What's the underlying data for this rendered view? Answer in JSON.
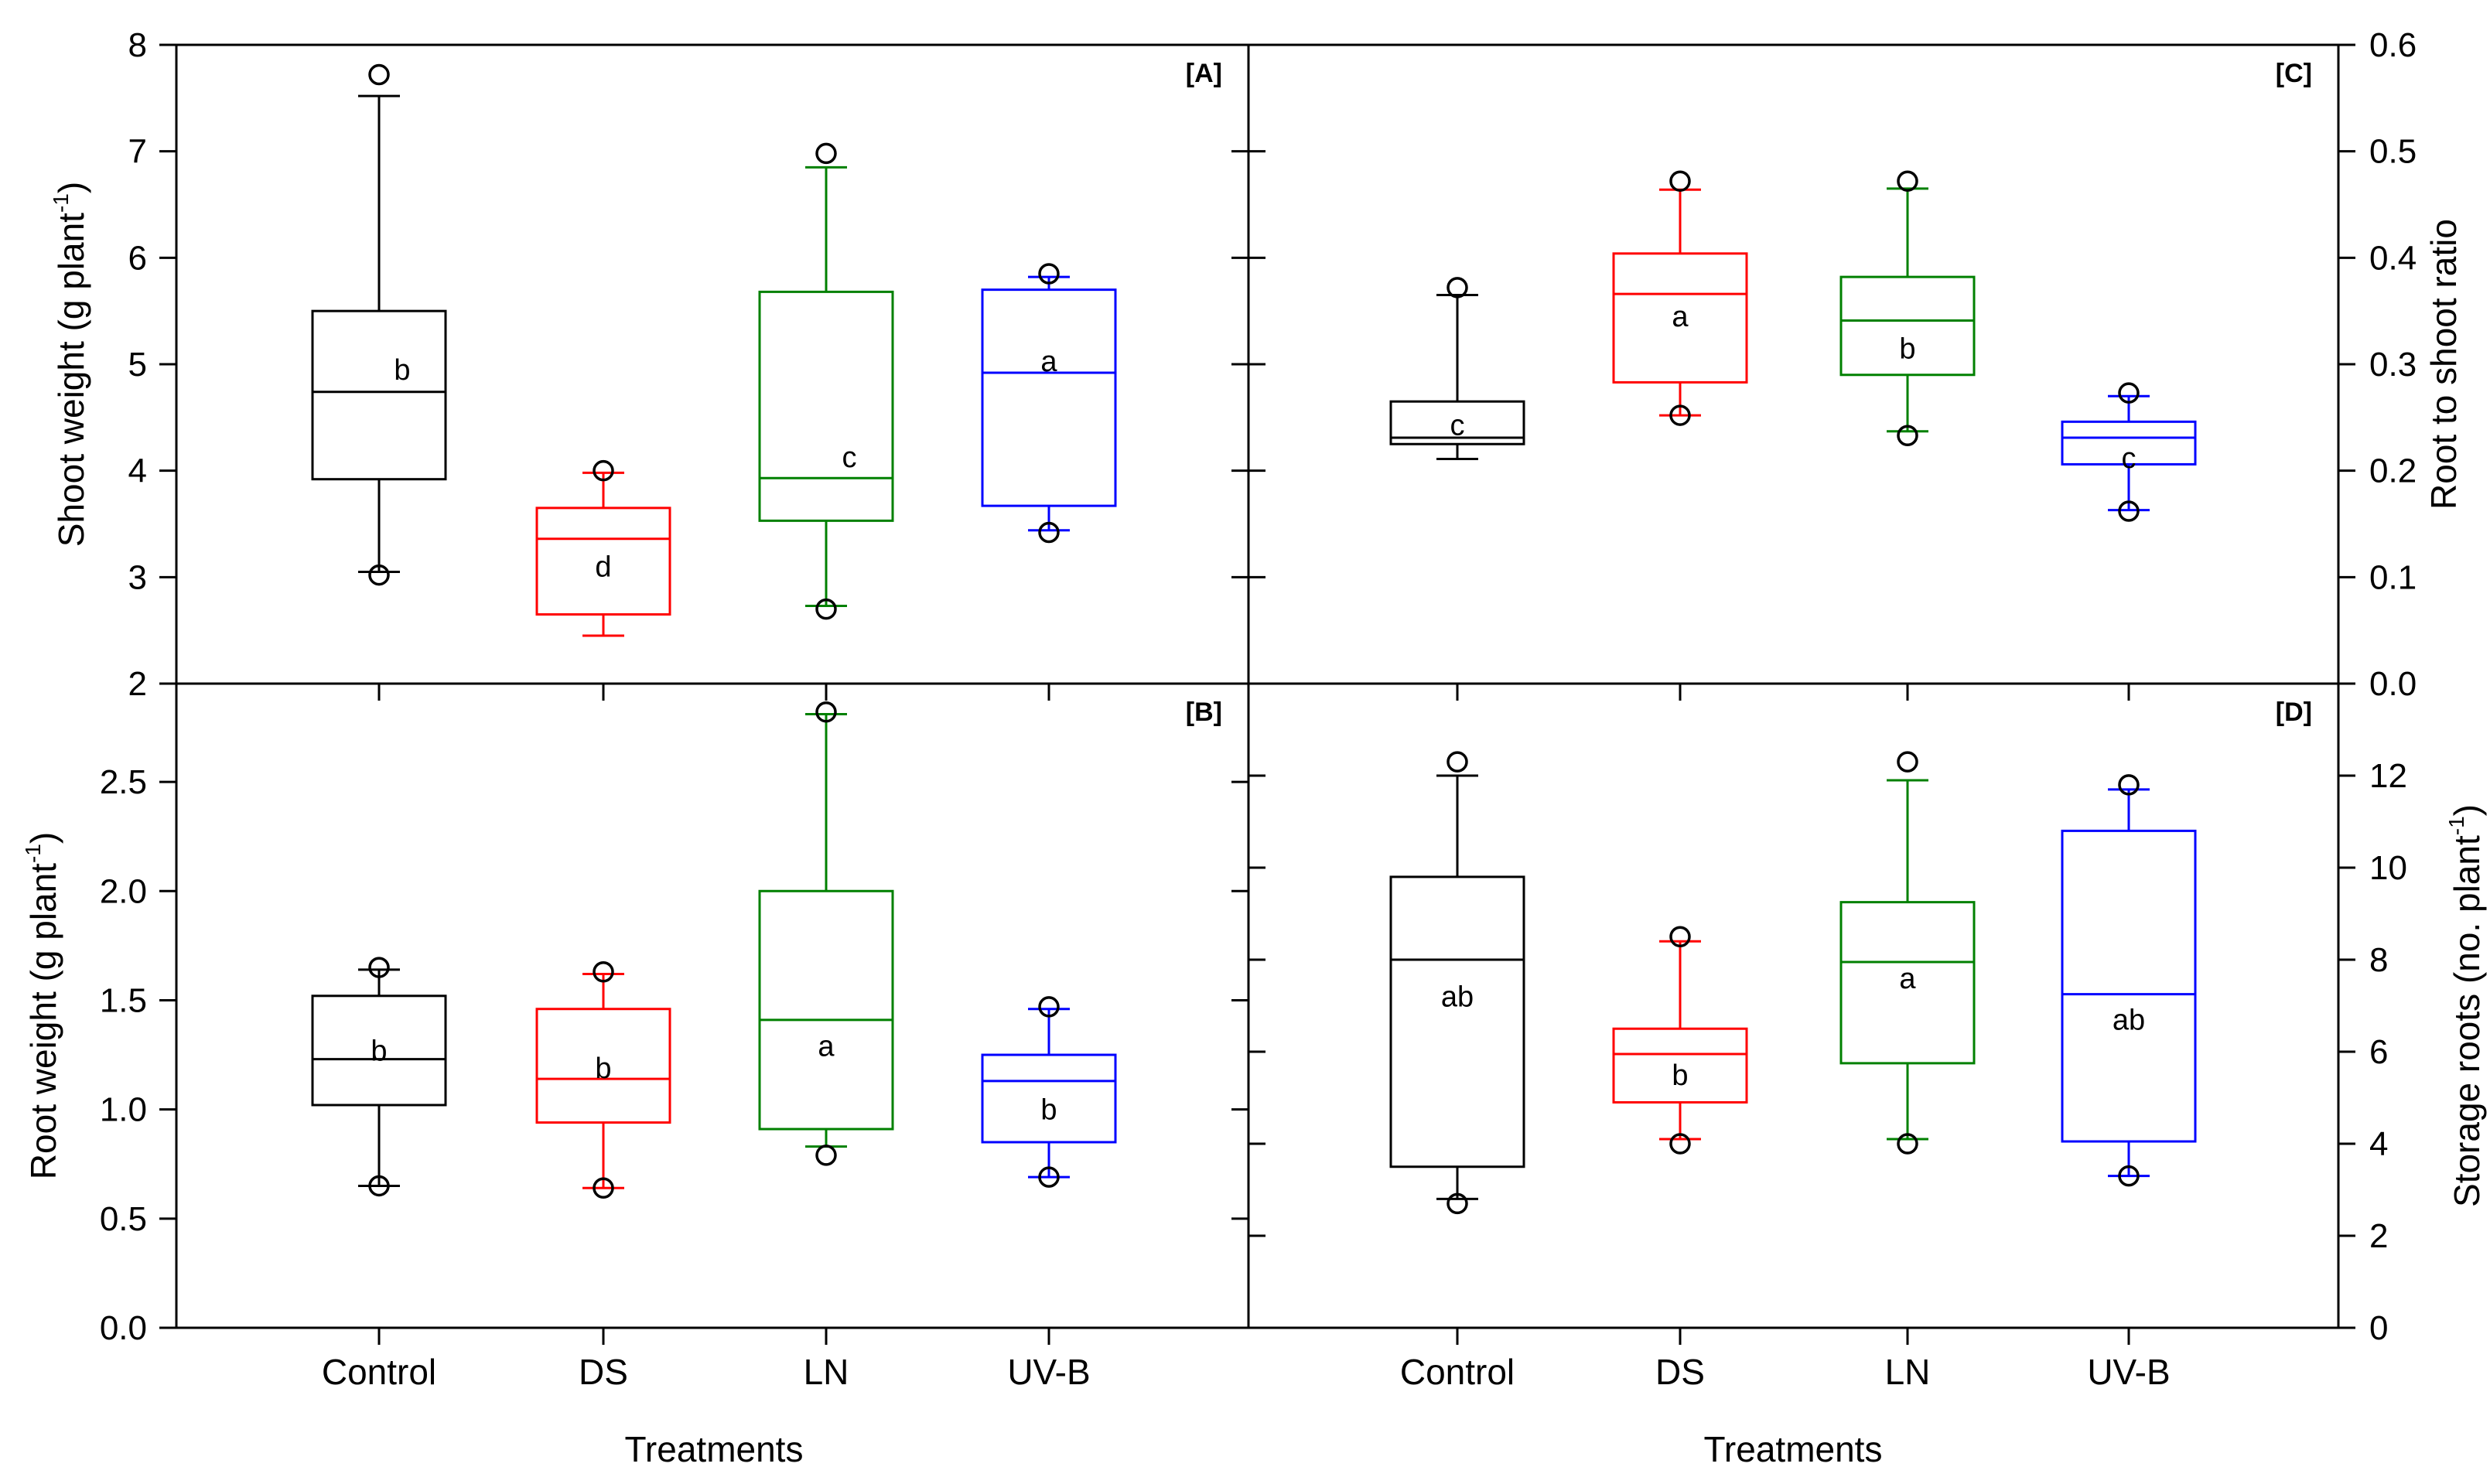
{
  "chart_data": [
    {
      "id": "A",
      "type": "box",
      "tag": "[A]",
      "ylabel": {
        "main": "Shoot weight (g plant",
        "sup": "-1",
        "end": ")"
      },
      "ylim": [
        2,
        8
      ],
      "yticks": [
        2,
        3,
        4,
        5,
        6,
        7,
        8
      ],
      "ytick_labels": [
        "2",
        "3",
        "4",
        "5",
        "6",
        "7",
        "8"
      ],
      "categories": [
        "Control",
        "DS",
        "LN",
        "UV-B"
      ],
      "colors": [
        "#000000",
        "#ff0000",
        "#008000",
        "#0000ff"
      ],
      "boxes": [
        {
          "q1": 3.92,
          "median": 4.74,
          "q3": 5.5,
          "whisker_low": 3.05,
          "whisker_high": 7.52,
          "outliers": [
            3.02,
            7.72
          ],
          "letter": "b",
          "letter_y": 4.95
        },
        {
          "q1": 2.65,
          "median": 3.36,
          "q3": 3.65,
          "whisker_low": 2.45,
          "whisker_high": 3.98,
          "outliers": [
            4.0
          ],
          "letter": "d",
          "letter_y": 3.1
        },
        {
          "q1": 3.53,
          "median": 3.93,
          "q3": 5.68,
          "whisker_low": 2.73,
          "whisker_high": 6.85,
          "outliers": [
            2.7,
            6.98
          ],
          "letter": "c",
          "letter_y": 4.13
        },
        {
          "q1": 3.67,
          "median": 4.92,
          "q3": 5.7,
          "whisker_low": 3.44,
          "whisker_high": 5.82,
          "outliers": [
            3.42,
            5.85
          ],
          "letter": "a",
          "letter_y": 5.03
        }
      ]
    },
    {
      "id": "B",
      "type": "box",
      "tag": "[B]",
      "ylabel": {
        "main": "Root weight (g plant",
        "sup": "-1",
        "end": ")"
      },
      "xlabel": "Treatments",
      "ylim": [
        0,
        2.95
      ],
      "yticks": [
        0,
        0.5,
        1.0,
        1.5,
        2.0,
        2.5
      ],
      "ytick_labels": [
        "0.0",
        "0.5",
        "1.0",
        "1.5",
        "2.0",
        "2.5"
      ],
      "categories": [
        "Control",
        "DS",
        "LN",
        "UV-B"
      ],
      "colors": [
        "#000000",
        "#ff0000",
        "#008000",
        "#0000ff"
      ],
      "boxes": [
        {
          "q1": 1.02,
          "median": 1.23,
          "q3": 1.52,
          "whisker_low": 0.65,
          "whisker_high": 1.64,
          "outliers": [
            0.65,
            1.65
          ],
          "letter": "b",
          "letter_y": 1.27
        },
        {
          "q1": 0.94,
          "median": 1.14,
          "q3": 1.46,
          "whisker_low": 0.64,
          "whisker_high": 1.62,
          "outliers": [
            0.64,
            1.63
          ],
          "letter": "b",
          "letter_y": 1.19
        },
        {
          "q1": 0.91,
          "median": 1.41,
          "q3": 2.0,
          "whisker_low": 0.83,
          "whisker_high": 2.81,
          "outliers": [
            0.79,
            2.82
          ],
          "letter": "a",
          "letter_y": 1.29
        },
        {
          "q1": 0.85,
          "median": 1.13,
          "q3": 1.25,
          "whisker_low": 0.69,
          "whisker_high": 1.46,
          "outliers": [
            0.69,
            1.47
          ],
          "letter": "b",
          "letter_y": 1.0
        }
      ]
    },
    {
      "id": "C",
      "type": "box",
      "tag": "[C]",
      "ylabel": {
        "main": "Root to shoot ratio",
        "sup": "",
        "end": ""
      },
      "ylim": [
        0,
        0.6
      ],
      "yticks": [
        0,
        0.1,
        0.2,
        0.3,
        0.4,
        0.5,
        0.6
      ],
      "ytick_labels": [
        "0.0",
        "0.1",
        "0.2",
        "0.3",
        "0.4",
        "0.5",
        "0.6"
      ],
      "categories": [
        "Control",
        "DS",
        "LN",
        "UV-B"
      ],
      "colors": [
        "#000000",
        "#ff0000",
        "#008000",
        "#0000ff"
      ],
      "boxes": [
        {
          "q1": 0.225,
          "median": 0.231,
          "q3": 0.265,
          "whisker_low": 0.211,
          "whisker_high": 0.365,
          "outliers": [
            0.372
          ],
          "letter": "c",
          "letter_y": 0.243
        },
        {
          "q1": 0.283,
          "median": 0.366,
          "q3": 0.404,
          "whisker_low": 0.252,
          "whisker_high": 0.464,
          "outliers": [
            0.252,
            0.472
          ],
          "letter": "a",
          "letter_y": 0.345
        },
        {
          "q1": 0.29,
          "median": 0.341,
          "q3": 0.382,
          "whisker_low": 0.237,
          "whisker_high": 0.465,
          "outliers": [
            0.233,
            0.472
          ],
          "letter": "b",
          "letter_y": 0.315
        },
        {
          "q1": 0.206,
          "median": 0.231,
          "q3": 0.246,
          "whisker_low": 0.163,
          "whisker_high": 0.27,
          "outliers": [
            0.162,
            0.273
          ],
          "letter": "c",
          "letter_y": 0.212
        }
      ]
    },
    {
      "id": "D",
      "type": "box",
      "tag": "[D]",
      "ylabel": {
        "main": "Storage roots (no. plant",
        "sup": "-1",
        "end": ")"
      },
      "xlabel": "Treatments",
      "ylim": [
        0,
        14
      ],
      "yticks": [
        0,
        2,
        4,
        6,
        8,
        10,
        12
      ],
      "ytick_labels": [
        "0",
        "2",
        "4",
        "6",
        "8",
        "10",
        "12"
      ],
      "categories": [
        "Control",
        "DS",
        "LN",
        "UV-B"
      ],
      "colors": [
        "#000000",
        "#ff0000",
        "#008000",
        "#0000ff"
      ],
      "boxes": [
        {
          "q1": 3.5,
          "median": 8.0,
          "q3": 9.8,
          "whisker_low": 2.8,
          "whisker_high": 12.0,
          "outliers": [
            2.7,
            12.3
          ],
          "letter": "ab",
          "letter_y": 7.2
        },
        {
          "q1": 4.9,
          "median": 5.95,
          "q3": 6.5,
          "whisker_low": 4.1,
          "whisker_high": 8.4,
          "outliers": [
            4.0,
            8.5
          ],
          "letter": "b",
          "letter_y": 5.5
        },
        {
          "q1": 5.75,
          "median": 7.95,
          "q3": 9.25,
          "whisker_low": 4.1,
          "whisker_high": 11.9,
          "outliers": [
            4.0,
            12.3
          ],
          "letter": "a",
          "letter_y": 7.6
        },
        {
          "q1": 4.05,
          "median": 7.25,
          "q3": 10.8,
          "whisker_low": 3.3,
          "whisker_high": 11.7,
          "outliers": [
            3.3,
            11.8
          ],
          "letter": "ab",
          "letter_y": 6.7
        }
      ]
    }
  ]
}
